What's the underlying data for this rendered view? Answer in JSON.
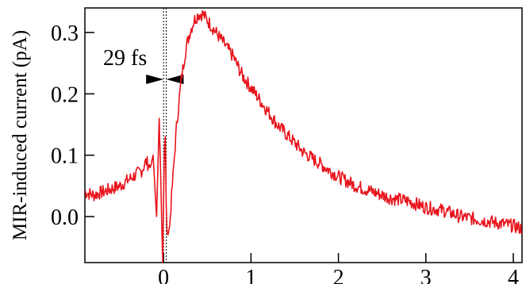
{
  "chart_data": {
    "type": "line",
    "title": "",
    "xlabel": "",
    "ylabel": "MIR-induced current (pA)",
    "xlim": [
      -0.9,
      4.1
    ],
    "ylim": [
      -0.075,
      0.34
    ],
    "x_ticks": [
      0,
      1,
      2,
      3,
      4
    ],
    "x_tick_labels": [
      "0",
      "1",
      "2",
      "3",
      "4"
    ],
    "y_ticks": [
      0.0,
      0.1,
      0.2,
      0.3
    ],
    "y_tick_labels": [
      "0.0",
      "0.1",
      "0.2",
      "0.3"
    ],
    "grid": false,
    "series": [
      {
        "color": "#e8141c",
        "x": [
          -0.9,
          -0.8,
          -0.7,
          -0.6,
          -0.5,
          -0.4,
          -0.3,
          -0.25,
          -0.2,
          -0.15,
          -0.12,
          -0.08,
          -0.05,
          -0.03,
          -0.02,
          -0.01,
          0.0,
          0.01,
          0.02,
          0.03,
          0.04,
          0.05,
          0.07,
          0.1,
          0.15,
          0.2,
          0.25,
          0.3,
          0.35,
          0.4,
          0.45,
          0.5,
          0.55,
          0.6,
          0.7,
          0.8,
          0.9,
          1.0,
          1.1,
          1.2,
          1.3,
          1.4,
          1.5,
          1.6,
          1.7,
          1.8,
          1.9,
          2.0,
          2.2,
          2.4,
          2.6,
          2.8,
          3.0,
          3.2,
          3.4,
          3.6,
          3.8,
          4.0,
          4.1
        ],
        "y": [
          0.04,
          0.035,
          0.04,
          0.045,
          0.05,
          0.06,
          0.07,
          0.075,
          0.09,
          0.08,
          0.1,
          0.0,
          0.16,
          0.05,
          -0.02,
          -0.075,
          0.03,
          0.11,
          0.13,
          0.02,
          -0.025,
          -0.03,
          -0.015,
          0.05,
          0.15,
          0.22,
          0.27,
          0.3,
          0.32,
          0.33,
          0.33,
          0.32,
          0.31,
          0.3,
          0.28,
          0.26,
          0.23,
          0.21,
          0.19,
          0.17,
          0.15,
          0.135,
          0.12,
          0.105,
          0.095,
          0.085,
          0.075,
          0.065,
          0.05,
          0.04,
          0.03,
          0.025,
          0.015,
          0.01,
          0.0,
          -0.005,
          -0.01,
          -0.015,
          -0.02
        ]
      }
    ],
    "annotations": [
      {
        "text": "29 fs",
        "marker_x": [
          0.0,
          0.03
        ]
      }
    ]
  }
}
